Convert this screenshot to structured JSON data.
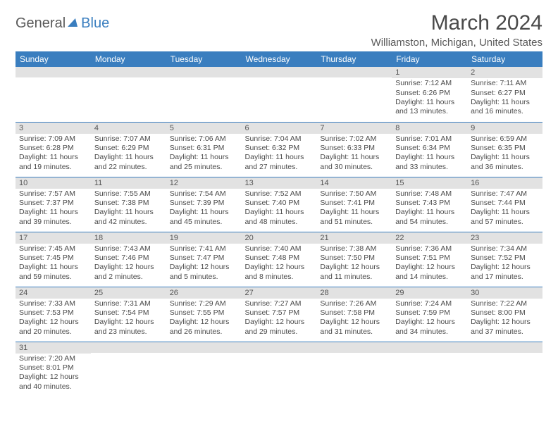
{
  "brand": {
    "part1": "General",
    "part2": "Blue"
  },
  "title": "March 2024",
  "location": "Williamston, Michigan, United States",
  "colors": {
    "header_bg": "#3a7ebf",
    "header_text": "#ffffff",
    "daynum_bg": "#e2e2e2",
    "cell_border": "#3a7ebf",
    "body_text": "#4a4a4a"
  },
  "daysOfWeek": [
    "Sunday",
    "Monday",
    "Tuesday",
    "Wednesday",
    "Thursday",
    "Friday",
    "Saturday"
  ],
  "weeks": [
    [
      {
        "n": "",
        "sr": "",
        "ss": "",
        "dl": ""
      },
      {
        "n": "",
        "sr": "",
        "ss": "",
        "dl": ""
      },
      {
        "n": "",
        "sr": "",
        "ss": "",
        "dl": ""
      },
      {
        "n": "",
        "sr": "",
        "ss": "",
        "dl": ""
      },
      {
        "n": "",
        "sr": "",
        "ss": "",
        "dl": ""
      },
      {
        "n": "1",
        "sr": "Sunrise: 7:12 AM",
        "ss": "Sunset: 6:26 PM",
        "dl": "Daylight: 11 hours and 13 minutes."
      },
      {
        "n": "2",
        "sr": "Sunrise: 7:11 AM",
        "ss": "Sunset: 6:27 PM",
        "dl": "Daylight: 11 hours and 16 minutes."
      }
    ],
    [
      {
        "n": "3",
        "sr": "Sunrise: 7:09 AM",
        "ss": "Sunset: 6:28 PM",
        "dl": "Daylight: 11 hours and 19 minutes."
      },
      {
        "n": "4",
        "sr": "Sunrise: 7:07 AM",
        "ss": "Sunset: 6:29 PM",
        "dl": "Daylight: 11 hours and 22 minutes."
      },
      {
        "n": "5",
        "sr": "Sunrise: 7:06 AM",
        "ss": "Sunset: 6:31 PM",
        "dl": "Daylight: 11 hours and 25 minutes."
      },
      {
        "n": "6",
        "sr": "Sunrise: 7:04 AM",
        "ss": "Sunset: 6:32 PM",
        "dl": "Daylight: 11 hours and 27 minutes."
      },
      {
        "n": "7",
        "sr": "Sunrise: 7:02 AM",
        "ss": "Sunset: 6:33 PM",
        "dl": "Daylight: 11 hours and 30 minutes."
      },
      {
        "n": "8",
        "sr": "Sunrise: 7:01 AM",
        "ss": "Sunset: 6:34 PM",
        "dl": "Daylight: 11 hours and 33 minutes."
      },
      {
        "n": "9",
        "sr": "Sunrise: 6:59 AM",
        "ss": "Sunset: 6:35 PM",
        "dl": "Daylight: 11 hours and 36 minutes."
      }
    ],
    [
      {
        "n": "10",
        "sr": "Sunrise: 7:57 AM",
        "ss": "Sunset: 7:37 PM",
        "dl": "Daylight: 11 hours and 39 minutes."
      },
      {
        "n": "11",
        "sr": "Sunrise: 7:55 AM",
        "ss": "Sunset: 7:38 PM",
        "dl": "Daylight: 11 hours and 42 minutes."
      },
      {
        "n": "12",
        "sr": "Sunrise: 7:54 AM",
        "ss": "Sunset: 7:39 PM",
        "dl": "Daylight: 11 hours and 45 minutes."
      },
      {
        "n": "13",
        "sr": "Sunrise: 7:52 AM",
        "ss": "Sunset: 7:40 PM",
        "dl": "Daylight: 11 hours and 48 minutes."
      },
      {
        "n": "14",
        "sr": "Sunrise: 7:50 AM",
        "ss": "Sunset: 7:41 PM",
        "dl": "Daylight: 11 hours and 51 minutes."
      },
      {
        "n": "15",
        "sr": "Sunrise: 7:48 AM",
        "ss": "Sunset: 7:43 PM",
        "dl": "Daylight: 11 hours and 54 minutes."
      },
      {
        "n": "16",
        "sr": "Sunrise: 7:47 AM",
        "ss": "Sunset: 7:44 PM",
        "dl": "Daylight: 11 hours and 57 minutes."
      }
    ],
    [
      {
        "n": "17",
        "sr": "Sunrise: 7:45 AM",
        "ss": "Sunset: 7:45 PM",
        "dl": "Daylight: 11 hours and 59 minutes."
      },
      {
        "n": "18",
        "sr": "Sunrise: 7:43 AM",
        "ss": "Sunset: 7:46 PM",
        "dl": "Daylight: 12 hours and 2 minutes."
      },
      {
        "n": "19",
        "sr": "Sunrise: 7:41 AM",
        "ss": "Sunset: 7:47 PM",
        "dl": "Daylight: 12 hours and 5 minutes."
      },
      {
        "n": "20",
        "sr": "Sunrise: 7:40 AM",
        "ss": "Sunset: 7:48 PM",
        "dl": "Daylight: 12 hours and 8 minutes."
      },
      {
        "n": "21",
        "sr": "Sunrise: 7:38 AM",
        "ss": "Sunset: 7:50 PM",
        "dl": "Daylight: 12 hours and 11 minutes."
      },
      {
        "n": "22",
        "sr": "Sunrise: 7:36 AM",
        "ss": "Sunset: 7:51 PM",
        "dl": "Daylight: 12 hours and 14 minutes."
      },
      {
        "n": "23",
        "sr": "Sunrise: 7:34 AM",
        "ss": "Sunset: 7:52 PM",
        "dl": "Daylight: 12 hours and 17 minutes."
      }
    ],
    [
      {
        "n": "24",
        "sr": "Sunrise: 7:33 AM",
        "ss": "Sunset: 7:53 PM",
        "dl": "Daylight: 12 hours and 20 minutes."
      },
      {
        "n": "25",
        "sr": "Sunrise: 7:31 AM",
        "ss": "Sunset: 7:54 PM",
        "dl": "Daylight: 12 hours and 23 minutes."
      },
      {
        "n": "26",
        "sr": "Sunrise: 7:29 AM",
        "ss": "Sunset: 7:55 PM",
        "dl": "Daylight: 12 hours and 26 minutes."
      },
      {
        "n": "27",
        "sr": "Sunrise: 7:27 AM",
        "ss": "Sunset: 7:57 PM",
        "dl": "Daylight: 12 hours and 29 minutes."
      },
      {
        "n": "28",
        "sr": "Sunrise: 7:26 AM",
        "ss": "Sunset: 7:58 PM",
        "dl": "Daylight: 12 hours and 31 minutes."
      },
      {
        "n": "29",
        "sr": "Sunrise: 7:24 AM",
        "ss": "Sunset: 7:59 PM",
        "dl": "Daylight: 12 hours and 34 minutes."
      },
      {
        "n": "30",
        "sr": "Sunrise: 7:22 AM",
        "ss": "Sunset: 8:00 PM",
        "dl": "Daylight: 12 hours and 37 minutes."
      }
    ],
    [
      {
        "n": "31",
        "sr": "Sunrise: 7:20 AM",
        "ss": "Sunset: 8:01 PM",
        "dl": "Daylight: 12 hours and 40 minutes."
      },
      {
        "n": "",
        "sr": "",
        "ss": "",
        "dl": ""
      },
      {
        "n": "",
        "sr": "",
        "ss": "",
        "dl": ""
      },
      {
        "n": "",
        "sr": "",
        "ss": "",
        "dl": ""
      },
      {
        "n": "",
        "sr": "",
        "ss": "",
        "dl": ""
      },
      {
        "n": "",
        "sr": "",
        "ss": "",
        "dl": ""
      },
      {
        "n": "",
        "sr": "",
        "ss": "",
        "dl": ""
      }
    ]
  ]
}
